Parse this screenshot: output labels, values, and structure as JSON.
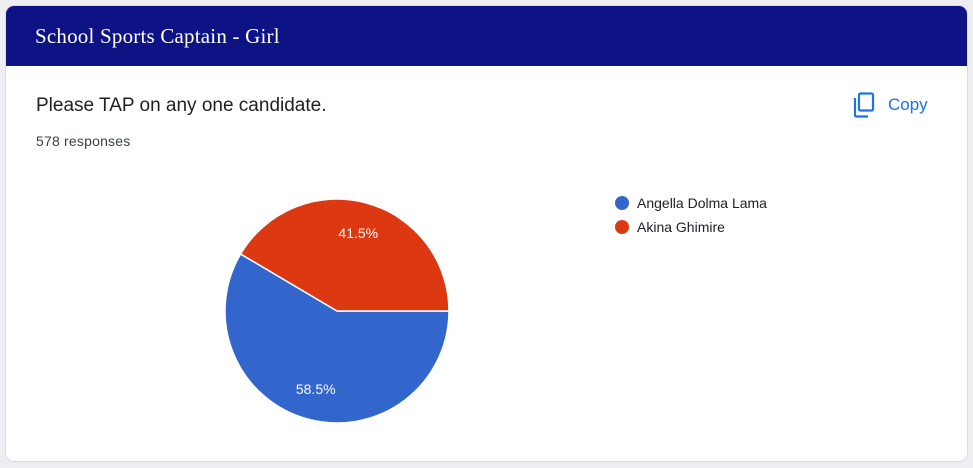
{
  "header": {
    "title": "School Sports Captain - Girl"
  },
  "question": {
    "text": "Please TAP on any one candidate."
  },
  "responses": {
    "text": "578 responses"
  },
  "copy": {
    "label": "Copy",
    "icon": "copy-icon"
  },
  "chart_data": {
    "type": "pie",
    "slices": [
      {
        "label": "Angella Dolma Lama",
        "value": 58.5,
        "display": "58.5%",
        "color": "#3366cc"
      },
      {
        "label": "Akina Ghimire",
        "value": 41.5,
        "display": "41.5%",
        "color": "#dc3912"
      }
    ],
    "legend_position": "right"
  }
}
